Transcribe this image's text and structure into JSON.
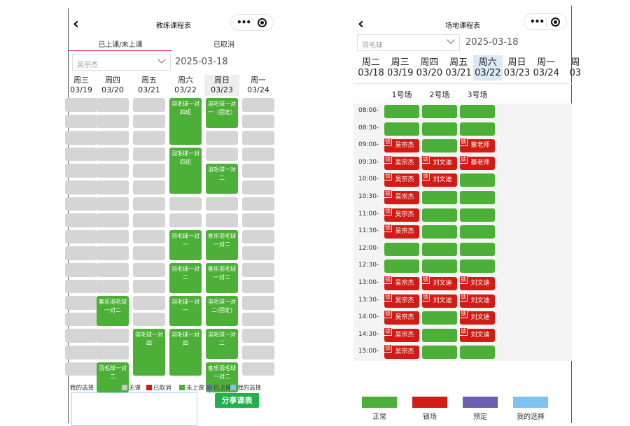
{
  "left": {
    "title": "教练课程表",
    "back_icon": "chevron-left-icon",
    "tabs": [
      {
        "label": "已上课/未上课",
        "active": true
      },
      {
        "label": "已取消",
        "active": false
      }
    ],
    "coach_select": "吴宗杰",
    "date": "2025-03-18",
    "days": [
      {
        "week": "周三",
        "date": "03/19",
        "selected": false
      },
      {
        "week": "周四",
        "date": "03/20",
        "selected": false
      },
      {
        "week": "周五",
        "date": "03/21",
        "selected": false
      },
      {
        "week": "周六",
        "date": "03/22",
        "selected": false
      },
      {
        "week": "周日",
        "date": "03/23",
        "selected": true
      },
      {
        "week": "周一",
        "date": "03/24",
        "selected": false
      }
    ],
    "classes": [
      {
        "col": 3,
        "row": 0,
        "span": 3,
        "text": "羽毛球一对四班"
      },
      {
        "col": 4,
        "row": 0,
        "span": 2,
        "text": "羽毛球一对一（固定）"
      },
      {
        "col": 3,
        "row": 3,
        "span": 3,
        "text": "羽毛球一对四班"
      },
      {
        "col": 4,
        "row": 4,
        "span": 2,
        "text": "羽毛球一对二"
      },
      {
        "col": 3,
        "row": 8,
        "span": 2,
        "text": "羽毛球一对一"
      },
      {
        "col": 4,
        "row": 8,
        "span": 2,
        "text": "客乐羽毛球一对二"
      },
      {
        "col": 3,
        "row": 10,
        "span": 2,
        "text": "羽毛球一对二"
      },
      {
        "col": 4,
        "row": 10,
        "span": 2,
        "text": "客乐羽毛球一对二"
      },
      {
        "col": 1,
        "row": 12,
        "span": 2,
        "text": "客乐羽毛球一对二"
      },
      {
        "col": 3,
        "row": 12,
        "span": 2,
        "text": "羽毛球一对一"
      },
      {
        "col": 4,
        "row": 12,
        "span": 2,
        "text": "羽毛球一对二(固定)"
      },
      {
        "col": 2,
        "row": 14,
        "span": 3,
        "text": "羽毛球一对四"
      },
      {
        "col": 3,
        "row": 14,
        "span": 3,
        "text": "羽毛球一对四"
      },
      {
        "col": 4,
        "row": 14,
        "span": 2,
        "text": "羽毛球一对二"
      },
      {
        "col": 1,
        "row": 16,
        "span": 2,
        "text": "羽毛球一对二"
      },
      {
        "col": 4,
        "row": 16,
        "span": 2,
        "text": "客乐羽毛球一对二"
      }
    ],
    "legend_title": "我的选择",
    "legend": [
      {
        "label": "无课",
        "color": "#c8c8c8"
      },
      {
        "label": "已取消",
        "color": "#d11b14"
      },
      {
        "label": "未上课",
        "color": "#4caf37"
      },
      {
        "label": "已上课",
        "color": "#6a5fb3"
      },
      {
        "label": "我的选择",
        "color": "#7ec4f2"
      }
    ],
    "share_label": "分享课表"
  },
  "right": {
    "title": "场地课程表",
    "back_icon": "chevron-left-icon",
    "sport_select": "羽毛球",
    "date": "2025-03-18",
    "days": [
      {
        "week": "周二",
        "date": "03/18",
        "selected": false
      },
      {
        "week": "周三",
        "date": "03/19",
        "selected": false
      },
      {
        "week": "周四",
        "date": "03/20",
        "selected": false
      },
      {
        "week": "周五",
        "date": "03/21",
        "selected": false
      },
      {
        "week": "周六",
        "date": "03/22",
        "selected": true
      },
      {
        "week": "周日",
        "date": "03/23",
        "selected": false
      },
      {
        "week": "周一",
        "date": "03/24",
        "selected": false
      },
      {
        "week": "周",
        "date": "03",
        "selected": false
      }
    ],
    "courts": [
      "1号场",
      "2号场",
      "3号场"
    ],
    "lock_text": "锁",
    "times": [
      "08:00-",
      "08:30-",
      "09:00-",
      "09:30-",
      "10:00-",
      "10:30-",
      "11:00-",
      "11:30-",
      "12:00-",
      "12:30-",
      "13:00-",
      "13:30-",
      "14:00-",
      "14:30-",
      "15:00-"
    ],
    "slots": [
      [
        "",
        "",
        ""
      ],
      [
        "",
        "",
        ""
      ],
      [
        "吴宗杰",
        "",
        "蔡老师"
      ],
      [
        "吴宗杰",
        "刘文迪",
        "蔡老师"
      ],
      [
        "吴宗杰",
        "刘文迪",
        ""
      ],
      [
        "吴宗杰",
        "",
        ""
      ],
      [
        "吴宗杰",
        "",
        ""
      ],
      [
        "吴宗杰",
        "",
        ""
      ],
      [
        "",
        "",
        ""
      ],
      [
        "",
        "",
        ""
      ],
      [
        "吴宗杰",
        "刘文迪",
        "刘文迪"
      ],
      [
        "吴宗杰",
        "刘文迪",
        "刘文迪"
      ],
      [
        "吴宗杰",
        "",
        "刘文迪"
      ],
      [
        "吴宗杰",
        "",
        "刘文迪"
      ],
      [
        "吴宗杰",
        "",
        ""
      ]
    ],
    "legend": [
      {
        "label": "正常",
        "color": "#4caf37"
      },
      {
        "label": "锁场",
        "color": "#d11b14"
      },
      {
        "label": "预定",
        "color": "#6a5fb3"
      },
      {
        "label": "我的选择",
        "color": "#7ec4f2"
      }
    ]
  }
}
